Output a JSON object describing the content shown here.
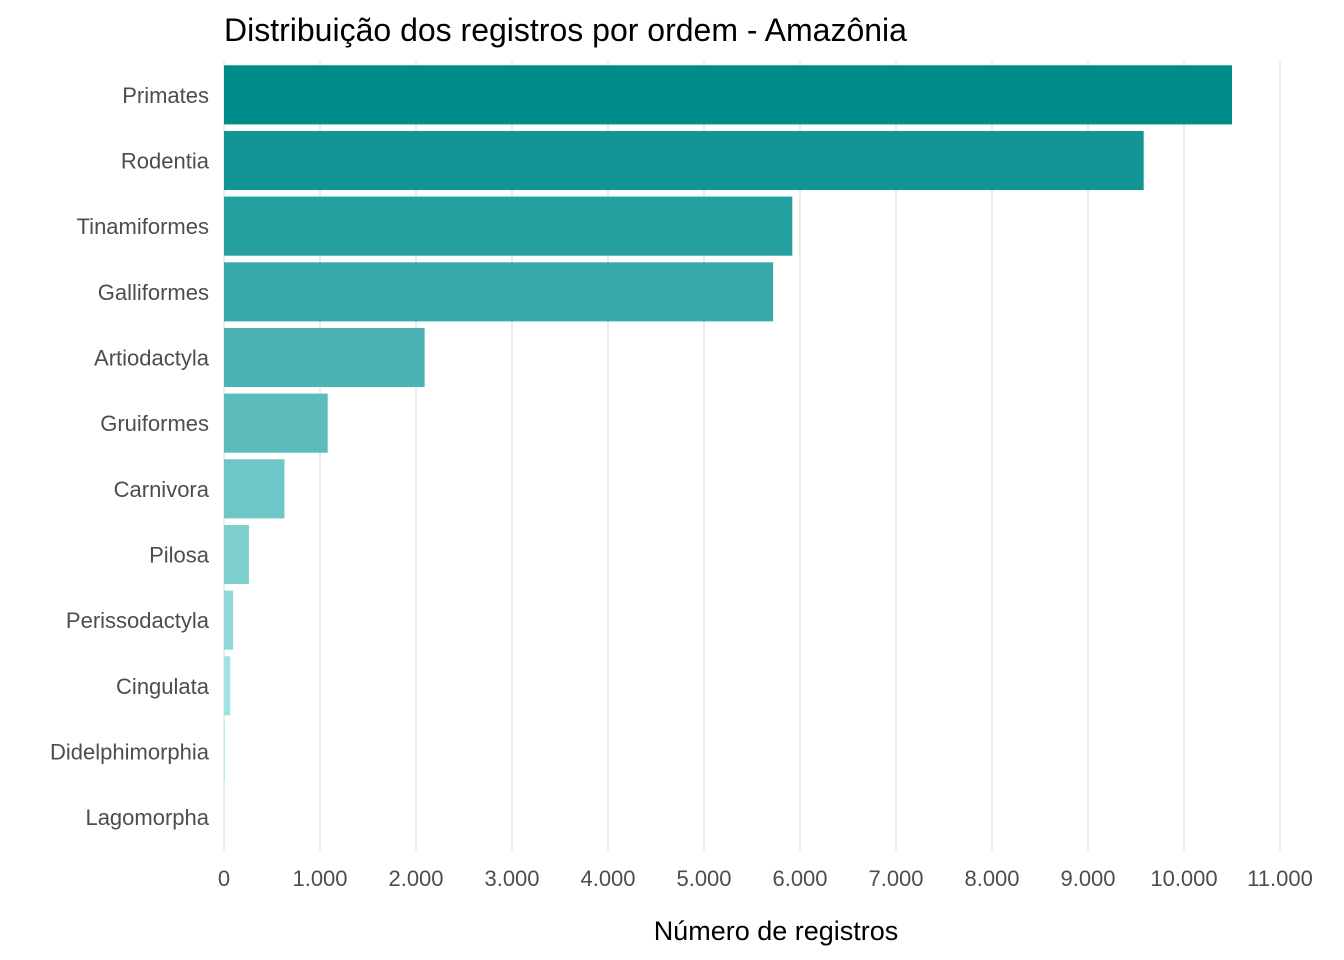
{
  "chart_data": {
    "type": "bar",
    "orientation": "horizontal",
    "title": "Distribuição dos registros por ordem - Amazônia",
    "xlabel": "Número de registros",
    "ylabel": "",
    "categories": [
      "Primates",
      "Rodentia",
      "Tinamiformes",
      "Galliformes",
      "Artiodactyla",
      "Gruiformes",
      "Carnivora",
      "Pilosa",
      "Perissodactyla",
      "Cingulata",
      "Didelphimorphia",
      "Lagomorpha"
    ],
    "values": [
      10500,
      9580,
      5920,
      5720,
      2090,
      1080,
      630,
      260,
      95,
      65,
      10,
      2
    ],
    "colors": [
      "#008b8b",
      "#139595",
      "#24a0a0",
      "#38a9a9",
      "#4ab2b2",
      "#5cbcbc",
      "#6ec6c6",
      "#7fcfcf",
      "#8fd9d9",
      "#a0e3e3",
      "#b0ecec",
      "#c0f2f2"
    ],
    "xlim": [
      0,
      11000
    ],
    "ticks": [
      0,
      1000,
      2000,
      3000,
      4000,
      5000,
      6000,
      7000,
      8000,
      9000,
      10000,
      11000
    ],
    "tick_labels": [
      "0",
      "1.000",
      "2.000",
      "3.000",
      "4.000",
      "5.000",
      "6.000",
      "7.000",
      "8.000",
      "9.000",
      "10.000",
      "11.000"
    ],
    "grid": true,
    "legend": "none"
  }
}
